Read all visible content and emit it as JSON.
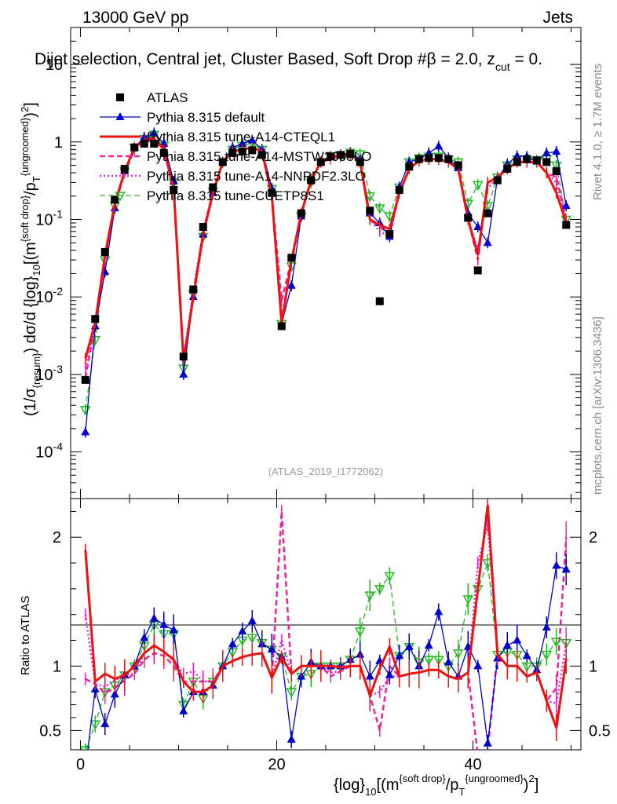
{
  "header": {
    "energy": "13000 GeV pp",
    "category": "Jets"
  },
  "plot_title": "Dijet selection, Central jet, Cluster Based, Soft Drop #β = 2.0, z",
  "plot_title_sub": "cut",
  "plot_title_tail": " = 0.",
  "side_labels": {
    "rivet": "Rivet 4.1.0, ≥ 1.7M events",
    "mcplots": "mcplots.cern.ch [arXiv:1306.3436]"
  },
  "analysis_id": "(ATLAS_2019_I1772062)",
  "colors": {
    "data": "#000000",
    "default": "#0000cc",
    "cteql1": "#ee1111",
    "mstw": "#ee2299",
    "nnpdf": "#dd22dd",
    "cuetp8s1": "#22bb22"
  },
  "chart_data": {
    "type": "line",
    "x_label": "{log}10[(m{soft drop}/pT{ungroomed})2]",
    "y_label_top": "(1/σ{resum}) dσ/d {log}10[(m{soft drop}/pT{ungroomed})2]",
    "y_label_ratio": "Ratio to ATLAS",
    "x_range": [
      -1,
      51
    ],
    "x_ticks": [
      0,
      20,
      40
    ],
    "y_range_top": [
      2.5e-05,
      30
    ],
    "y_scale_top": "log",
    "y_ticks_top": [
      "10^-4",
      "10^-3",
      "10^-2",
      "10^-1",
      "1",
      "10"
    ],
    "y_range_ratio": [
      0.35,
      2.3
    ],
    "y_ticks_ratio": [
      0.5,
      1,
      2
    ],
    "legend": [
      "ATLAS",
      "Pythia 8.315 default",
      "Pythia 8.315 tune-A14-CTEQL1",
      "Pythia 8.315 tune-A14-MSTW2008LO",
      "Pythia 8.315 tune-A14-NNPDF2.3LO",
      "Pythia 8.315 tune-CUETP8S1"
    ],
    "x": [
      0.5,
      1.5,
      2.5,
      3.5,
      4.5,
      5.5,
      6.5,
      7.5,
      8.5,
      9.5,
      10.5,
      11.5,
      12.5,
      13.5,
      14.5,
      15.5,
      16.5,
      17.5,
      18.5,
      19.5,
      20.5,
      21.5,
      22.5,
      23.5,
      24.5,
      25.5,
      26.5,
      27.5,
      28.5,
      29.5,
      30.5,
      31.5,
      32.5,
      33.5,
      34.5,
      35.5,
      36.5,
      37.5,
      38.5,
      39.5,
      40.5,
      41.5,
      42.5,
      43.5,
      44.5,
      45.5,
      46.5,
      47.5,
      48.5,
      49.5
    ],
    "series": [
      {
        "name": "ATLAS",
        "key": "data",
        "values": [
          0.00085,
          0.0052,
          0.038,
          0.18,
          0.45,
          0.85,
          0.95,
          0.95,
          0.72,
          0.24,
          0.0017,
          0.0125,
          0.08,
          0.26,
          0.55,
          0.72,
          0.75,
          0.78,
          0.68,
          0.22,
          0.0042,
          0.032,
          0.12,
          0.32,
          0.55,
          0.65,
          0.68,
          0.7,
          0.55,
          0.13,
          0.0088,
          0.065,
          0.24,
          0.48,
          0.6,
          0.62,
          0.62,
          0.6,
          0.5,
          0.105,
          0.022,
          0.12,
          0.32,
          0.45,
          0.55,
          0.6,
          0.58,
          0.55,
          0.42,
          0.085
        ],
        "ratio": [
          1,
          1,
          1,
          1,
          1,
          1,
          1,
          1,
          1,
          1,
          1,
          1,
          1,
          1,
          1,
          1,
          1,
          1,
          1,
          1,
          1,
          1,
          1,
          1,
          1,
          1,
          1,
          1,
          1,
          1,
          1,
          1,
          1,
          1,
          1,
          1,
          1,
          1,
          1,
          1,
          1,
          1,
          1,
          1,
          1,
          1,
          1,
          1,
          1,
          1
        ]
      },
      {
        "name": "Pythia 8.315 default",
        "key": "default",
        "values": [
          0.00018,
          0.0042,
          0.021,
          0.14,
          0.42,
          0.85,
          1.15,
          1.3,
          0.95,
          0.31,
          0.001,
          0.01,
          0.064,
          0.22,
          0.55,
          0.85,
          0.95,
          1.05,
          0.8,
          0.25,
          0.0045,
          0.014,
          0.11,
          0.33,
          0.55,
          0.65,
          0.68,
          0.73,
          0.6,
          0.12,
          0.09,
          0.06,
          0.26,
          0.55,
          0.6,
          0.72,
          0.88,
          0.62,
          0.46,
          0.12,
          0.08,
          0.05,
          0.34,
          0.52,
          0.66,
          0.65,
          0.56,
          0.72,
          0.75,
          0.15
        ],
        "ratio": [
          0.2,
          0.82,
          0.55,
          0.78,
          0.93,
          1.0,
          1.22,
          1.37,
          1.32,
          1.28,
          0.65,
          0.8,
          0.8,
          0.85,
          1.0,
          1.17,
          1.27,
          1.35,
          1.17,
          1.13,
          1.07,
          0.43,
          0.92,
          1.03,
          1.0,
          1.0,
          1.0,
          1.05,
          1.09,
          0.92,
          1.04,
          0.93,
          1.08,
          1.15,
          1.0,
          1.16,
          1.42,
          1.03,
          0.92,
          1.15,
          1.0,
          0.4,
          1.06,
          1.16,
          1.2,
          1.08,
          0.97,
          1.3,
          1.78,
          1.75
        ]
      },
      {
        "name": "Pythia 8.315 tune-A14-CTEQL1",
        "key": "cteql1",
        "values": [
          0.0016,
          0.0047,
          0.035,
          0.16,
          0.42,
          0.85,
          1.05,
          1.1,
          0.8,
          0.25,
          0.0015,
          0.01,
          0.064,
          0.22,
          0.55,
          0.75,
          0.8,
          0.85,
          0.75,
          0.2,
          0.0045,
          0.03,
          0.12,
          0.32,
          0.55,
          0.65,
          0.67,
          0.7,
          0.55,
          0.1,
          0.085,
          0.075,
          0.22,
          0.45,
          0.57,
          0.6,
          0.6,
          0.55,
          0.45,
          0.1,
          0.035,
          0.3,
          0.35,
          0.45,
          0.55,
          0.55,
          0.55,
          0.4,
          0.22,
          0.09
        ],
        "ratio": [
          1.9,
          0.88,
          0.94,
          0.9,
          0.93,
          1.0,
          1.1,
          1.16,
          1.11,
          1.05,
          0.88,
          0.8,
          0.8,
          0.85,
          1.0,
          1.04,
          1.07,
          1.09,
          1.1,
          0.91,
          1.07,
          0.94,
          1.0,
          1.0,
          1.0,
          1.0,
          0.99,
          1.0,
          1.0,
          0.77,
          0.98,
          1.15,
          0.92,
          0.94,
          0.95,
          0.97,
          0.97,
          0.92,
          0.9,
          0.95,
          1.6,
          2.25,
          1.09,
          1.0,
          1.0,
          0.92,
          0.95,
          0.73,
          0.52,
          1.06
        ]
      },
      {
        "name": "Pythia 8.315 tune-A14-MSTW2008LO",
        "key": "mstw",
        "values": [
          0.0009,
          0.0045,
          0.03,
          0.15,
          0.4,
          0.8,
          1.0,
          1.05,
          0.78,
          0.24,
          0.0015,
          0.011,
          0.07,
          0.23,
          0.55,
          0.75,
          0.8,
          0.85,
          0.75,
          0.2,
          0.009,
          0.03,
          0.12,
          0.32,
          0.55,
          0.6,
          0.65,
          0.7,
          0.55,
          0.1,
          0.08,
          0.065,
          0.22,
          0.45,
          0.57,
          0.6,
          0.6,
          0.55,
          0.45,
          0.1,
          0.03,
          0.3,
          0.35,
          0.45,
          0.55,
          0.55,
          0.55,
          0.4,
          0.35,
          0.1
        ],
        "ratio": [
          0.9,
          0.86,
          0.79,
          0.83,
          0.89,
          0.94,
          1.05,
          1.1,
          1.08,
          1.0,
          0.88,
          0.88,
          0.88,
          0.88,
          1.0,
          1.04,
          1.07,
          1.09,
          1.1,
          0.91,
          2.2,
          0.94,
          1.0,
          1.0,
          1.0,
          0.92,
          0.96,
          1.0,
          1.0,
          0.77,
          0.5,
          1.0,
          0.92,
          0.94,
          0.95,
          0.97,
          0.97,
          0.92,
          0.9,
          0.95,
          0.3,
          0.35,
          1.09,
          1.0,
          1.0,
          0.92,
          0.95,
          0.73,
          0.83,
          2.0
        ]
      },
      {
        "name": "Pythia 8.315 tune-A14-NNPDF2.3LO",
        "key": "nnpdf",
        "values": [
          0.0012,
          0.0045,
          0.032,
          0.16,
          0.42,
          0.8,
          1.05,
          1.1,
          0.8,
          0.25,
          0.0016,
          0.012,
          0.07,
          0.23,
          0.55,
          0.75,
          0.8,
          0.85,
          0.75,
          0.2,
          0.005,
          0.03,
          0.12,
          0.32,
          0.55,
          0.62,
          0.65,
          0.7,
          0.55,
          0.1,
          0.07,
          0.06,
          0.22,
          0.45,
          0.57,
          0.6,
          0.6,
          0.55,
          0.45,
          0.1,
          0.04,
          0.25,
          0.35,
          0.45,
          0.55,
          0.55,
          0.55,
          0.4,
          0.3,
          0.1
        ],
        "ratio": [
          1.4,
          0.86,
          0.84,
          0.89,
          0.93,
          0.94,
          1.1,
          1.16,
          1.11,
          1.04,
          0.94,
          0.96,
          0.88,
          0.88,
          1.0,
          1.04,
          1.07,
          1.09,
          1.1,
          0.91,
          1.2,
          0.94,
          1.0,
          1.0,
          1.0,
          0.95,
          0.96,
          1.0,
          1.0,
          0.77,
          0.8,
          0.92,
          0.92,
          0.94,
          0.95,
          0.97,
          0.97,
          0.92,
          0.9,
          0.95,
          1.8,
          2.1,
          1.09,
          1.0,
          1.0,
          0.92,
          0.95,
          0.73,
          0.71,
          1.18
        ]
      },
      {
        "name": "Pythia 8.315 tune-CUETP8S1",
        "key": "cuetp8s1",
        "values": [
          0.00035,
          0.0028,
          0.03,
          0.15,
          0.42,
          0.85,
          1.1,
          1.25,
          0.9,
          0.3,
          0.0012,
          0.011,
          0.06,
          0.23,
          0.55,
          0.8,
          0.9,
          0.95,
          0.8,
          0.25,
          0.0045,
          0.025,
          0.11,
          0.3,
          0.55,
          0.65,
          0.68,
          0.73,
          0.7,
          0.2,
          0.14,
          0.11,
          0.26,
          0.55,
          0.62,
          0.65,
          0.65,
          0.6,
          0.55,
          0.16,
          0.28,
          0.15,
          0.35,
          0.5,
          0.6,
          0.6,
          0.58,
          0.6,
          0.5,
          0.1
        ],
        "ratio": [
          0.35,
          0.55,
          0.8,
          0.85,
          0.93,
          1.0,
          1.16,
          1.32,
          1.25,
          1.25,
          0.7,
          0.88,
          0.75,
          0.88,
          1.0,
          1.11,
          1.2,
          1.22,
          1.18,
          1.13,
          1.07,
          0.8,
          0.92,
          0.94,
          1.0,
          1.0,
          1.0,
          1.05,
          1.27,
          1.55,
          1.6,
          1.7,
          1.08,
          1.15,
          1.03,
          1.05,
          1.05,
          1.0,
          1.1,
          1.52,
          1.6,
          1.8,
          1.09,
          1.11,
          1.09,
          1.0,
          1.0,
          1.09,
          1.19,
          1.18
        ]
      }
    ]
  }
}
